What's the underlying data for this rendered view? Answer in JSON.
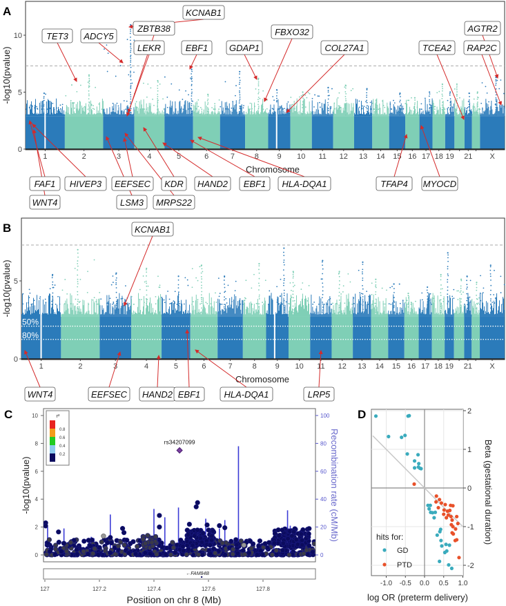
{
  "panel_labels": {
    "a": "A",
    "b": "B",
    "c": "C",
    "d": "D"
  },
  "chart_data": [
    {
      "id": "A",
      "type": "scatter",
      "subtype": "manhattan",
      "xlabel": "Chromosome",
      "ylabel": "-log10(pvalue)",
      "yticks": [
        0,
        5,
        10
      ],
      "ylim": [
        0,
        12.9
      ],
      "threshold": 7.3,
      "colors": [
        "#2b7bba",
        "#7fcfb6"
      ],
      "chromosomes": [
        "1",
        "2",
        "3",
        "4",
        "5",
        "6",
        "7",
        "8",
        "9",
        "10",
        "11",
        "12",
        "13",
        "14",
        "15",
        "16",
        "17",
        "18",
        "19",
        "20",
        "21",
        "22",
        "X"
      ],
      "tick_labels": [
        "1",
        "2",
        "3",
        "4",
        "5",
        "6",
        "7",
        "8",
        "9",
        "10",
        "11",
        "12",
        "13",
        "14",
        "15",
        "16",
        "17",
        "18",
        "19",
        "",
        "21",
        "",
        "X"
      ],
      "lengths_mb": [
        249,
        243,
        198,
        191,
        181,
        171,
        159,
        146,
        141,
        136,
        135,
        133,
        115,
        107,
        102,
        90,
        83,
        80,
        59,
        64,
        47,
        51,
        156
      ],
      "max_values": [
        4.9,
        6.5,
        10.9,
        6.0,
        7.0,
        4.8,
        6.8,
        6.2,
        5.2,
        5.0,
        5.4,
        5.6,
        5.3,
        4.3,
        4.9,
        4.5,
        5.0,
        5.7,
        5.0,
        5.7,
        4.9,
        5.0,
        6.3
      ],
      "body_level": 2.9,
      "annotations": [
        {
          "gene": "KCNAB1",
          "chr": "3"
        },
        {
          "gene": "ZBTB38",
          "chr": "3"
        },
        {
          "gene": "LEKR",
          "chr": "3"
        },
        {
          "gene": "TET3",
          "chr": "2"
        },
        {
          "gene": "ADCY5",
          "chr": "3"
        },
        {
          "gene": "EBF1",
          "chr": "5"
        },
        {
          "gene": "GDAP1",
          "chr": "8"
        },
        {
          "gene": "FBXO32",
          "chr": "8"
        },
        {
          "gene": "COL27A1",
          "chr": "9"
        },
        {
          "gene": "TCEA2",
          "chr": "20"
        },
        {
          "gene": "AGTR2",
          "chr": "X"
        },
        {
          "gene": "RAP2C",
          "chr": "X"
        },
        {
          "gene": "FAF1",
          "chr": "1"
        },
        {
          "gene": "HIVEP3",
          "chr": "1"
        },
        {
          "gene": "EEFSEC",
          "chr": "3"
        },
        {
          "gene": "KDR",
          "chr": "4"
        },
        {
          "gene": "HAND2",
          "chr": "4"
        },
        {
          "gene": "EBF1",
          "chr": "5"
        },
        {
          "gene": "HLA-DQA1",
          "chr": "6"
        },
        {
          "gene": "TFAP4",
          "chr": "16"
        },
        {
          "gene": "MYOCD",
          "chr": "17"
        },
        {
          "gene": "WNT4",
          "chr": "1"
        },
        {
          "gene": "LSM3",
          "chr": "3"
        },
        {
          "gene": "MRPS22",
          "chr": "3"
        }
      ]
    },
    {
      "id": "B",
      "type": "scatter",
      "subtype": "manhattan",
      "xlabel": "Chromosome",
      "ylabel": "-log10(pvalue)",
      "yticks": [
        0,
        5
      ],
      "ylim": [
        0,
        9.0
      ],
      "threshold": 7.3,
      "power_lines": [
        {
          "label": "50%",
          "value": 2.1
        },
        {
          "label": "80%",
          "value": 1.25
        }
      ],
      "colors": [
        "#2b7bba",
        "#7fcfb6"
      ],
      "chromosomes": [
        "1",
        "2",
        "3",
        "4",
        "5",
        "6",
        "7",
        "8",
        "9",
        "10",
        "11",
        "12",
        "13",
        "14",
        "15",
        "16",
        "17",
        "18",
        "19",
        "20",
        "21",
        "22",
        "X"
      ],
      "tick_labels": [
        "1",
        "2",
        "3",
        "4",
        "5",
        "6",
        "7",
        "8",
        "9",
        "10",
        "11",
        "12",
        "13",
        "14",
        "15",
        "16",
        "17",
        "18",
        "19",
        "",
        "21",
        "",
        "X"
      ],
      "lengths_mb": [
        249,
        243,
        198,
        191,
        181,
        171,
        159,
        146,
        141,
        136,
        135,
        133,
        115,
        107,
        102,
        90,
        83,
        80,
        59,
        64,
        47,
        51,
        156
      ],
      "max_values": [
        5.4,
        7.0,
        5.5,
        5.8,
        5.3,
        6.0,
        5.3,
        6.1,
        7.1,
        5.6,
        6.3,
        5.6,
        6.2,
        5.1,
        4.8,
        4.2,
        4.6,
        5.4,
        6.8,
        5.1,
        5.3,
        4.9,
        6.0
      ],
      "body_level": 2.7,
      "annotations": [
        {
          "gene": "KCNAB1",
          "chr": "3"
        },
        {
          "gene": "WNT4",
          "chr": "1"
        },
        {
          "gene": "EEFSEC",
          "chr": "3"
        },
        {
          "gene": "HAND2",
          "chr": "4"
        },
        {
          "gene": "EBF1",
          "chr": "5"
        },
        {
          "gene": "HLA-DQA1",
          "chr": "6"
        },
        {
          "gene": "LRP5",
          "chr": "11"
        }
      ]
    },
    {
      "id": "C",
      "type": "scatter",
      "subtype": "regional-association",
      "xlabel": "Position on chr 8 (Mb)",
      "ylabel": "-log10(pvalue)",
      "y2label": "Recombination rate (cM/Mb)",
      "xlim": [
        127.0,
        128.0
      ],
      "ylim": [
        0,
        10
      ],
      "y2lim": [
        0,
        100
      ],
      "xticks": [
        127,
        127.2,
        127.4,
        127.6,
        127.8
      ],
      "xtick_labels": [
        "127",
        "127.2",
        "127.4",
        "127.6",
        "127.8"
      ],
      "yticks": [
        0,
        2,
        4,
        6,
        8,
        10
      ],
      "y2ticks": [
        0,
        20,
        40,
        60,
        80,
        100
      ],
      "lead_snp": {
        "id": "rs34207099",
        "x": 127.494,
        "y": 7.5,
        "color": "#7b3fa0"
      },
      "notable_points": [
        [
          127.56,
          3.75
        ],
        [
          127.555,
          3.45
        ],
        [
          127.42,
          2.83
        ],
        [
          127.003,
          2.3
        ],
        [
          127.003,
          2.08
        ],
        [
          127.285,
          1.9
        ],
        [
          127.29,
          1.6
        ],
        [
          127.64,
          2.1
        ],
        [
          127.05,
          1.65
        ],
        [
          127.53,
          2.2
        ],
        [
          127.595,
          2.15
        ],
        [
          127.42,
          2.0
        ],
        [
          127.66,
          1.95
        ],
        [
          127.24,
          1.25
        ]
      ],
      "grey_points": [
        [
          127.215,
          1.35
        ],
        [
          127.73,
          0.7
        ]
      ],
      "recombination_spikes": [
        [
          127.01,
          20
        ],
        [
          127.07,
          19
        ],
        [
          127.17,
          13
        ],
        [
          127.18,
          12
        ],
        [
          127.24,
          29
        ],
        [
          127.4,
          33
        ],
        [
          127.44,
          27
        ],
        [
          127.49,
          34
        ],
        [
          127.59,
          26
        ],
        [
          127.64,
          19
        ],
        [
          127.66,
          25
        ],
        [
          127.71,
          78
        ],
        [
          127.84,
          16
        ],
        [
          127.89,
          32
        ],
        [
          127.9,
          21
        ]
      ],
      "legend": {
        "title": "r²",
        "breaks": [
          "0.8",
          "0.6",
          "0.4",
          "0.2"
        ],
        "colors": [
          "#e8231f",
          "#f39c1b",
          "#22cc22",
          "#8ecbee",
          "#0b0b5e"
        ]
      },
      "gene_track": {
        "gene": "←FAM84B",
        "x": 127.57
      }
    },
    {
      "id": "D",
      "type": "scatter",
      "xlabel": "log OR (preterm delivery)",
      "ylabel": "Beta (gestational duration)",
      "xlim": [
        -1.35,
        1.0
      ],
      "ylim": [
        -2.25,
        2.05
      ],
      "xticks": [
        -1.0,
        -0.5,
        0.0,
        0.5,
        1.0
      ],
      "xtick_labels": [
        "-1.0",
        "-0.5",
        "0.0",
        "0.5",
        "1.0"
      ],
      "yticks": [
        2,
        1,
        0,
        -1,
        -2
      ],
      "ytick_labels": [
        "2",
        "1",
        "0",
        "-1",
        "-2"
      ],
      "legend": {
        "title": "hits for:",
        "position": "bottom-left"
      },
      "series": [
        {
          "name": "GD",
          "color": "#3aabbd",
          "points": [
            [
              -1.27,
              1.86
            ],
            [
              -0.43,
              1.86
            ],
            [
              -0.4,
              1.87
            ],
            [
              -0.94,
              1.33
            ],
            [
              -0.6,
              1.31
            ],
            [
              -0.51,
              1.36
            ],
            [
              -0.45,
              0.88
            ],
            [
              -0.17,
              0.86
            ],
            [
              -0.26,
              0.7
            ],
            [
              -0.15,
              0.63
            ],
            [
              -0.26,
              0.52
            ],
            [
              -0.16,
              0.54
            ],
            [
              -0.12,
              0.51
            ],
            [
              -0.09,
              0.5
            ],
            [
              0.09,
              -0.45
            ],
            [
              0.15,
              -0.45
            ],
            [
              0.12,
              -0.54
            ],
            [
              0.16,
              -0.63
            ],
            [
              0.21,
              -0.64
            ],
            [
              0.28,
              -0.63
            ],
            [
              0.25,
              -0.77
            ],
            [
              0.42,
              -1.07
            ],
            [
              0.4,
              -1.13
            ],
            [
              0.33,
              -1.22
            ],
            [
              0.43,
              -1.36
            ],
            [
              0.56,
              -1.46
            ],
            [
              0.65,
              -1.48
            ],
            [
              0.45,
              -1.5
            ],
            [
              0.58,
              -1.63
            ],
            [
              0.53,
              -1.67
            ],
            [
              0.39,
              -1.9
            ],
            [
              0.63,
              -1.99
            ],
            [
              0.71,
              -2.08
            ]
          ]
        },
        {
          "name": "PTD",
          "color": "#e8512a",
          "points": [
            [
              -0.27,
              0.1
            ],
            [
              0.31,
              -0.21
            ],
            [
              0.3,
              -0.36
            ],
            [
              0.39,
              -0.3
            ],
            [
              0.44,
              -0.39
            ],
            [
              0.54,
              -0.43
            ],
            [
              0.68,
              -0.45
            ],
            [
              0.74,
              -0.46
            ],
            [
              0.36,
              -0.51
            ],
            [
              0.51,
              -0.57
            ],
            [
              0.6,
              -0.6
            ],
            [
              0.66,
              -0.58
            ],
            [
              0.5,
              -0.68
            ],
            [
              0.62,
              -0.7
            ],
            [
              0.69,
              -0.74
            ],
            [
              0.84,
              -0.74
            ],
            [
              0.57,
              -0.77
            ],
            [
              0.72,
              -0.83
            ],
            [
              0.7,
              -0.95
            ],
            [
              0.87,
              -0.92
            ],
            [
              0.74,
              -1.0
            ],
            [
              0.81,
              -1.06
            ],
            [
              0.72,
              -1.16
            ],
            [
              0.75,
              -1.19
            ],
            [
              0.84,
              -1.34
            ],
            [
              0.8,
              -1.36
            ],
            [
              0.9,
              -1.8
            ]
          ]
        }
      ]
    }
  ]
}
